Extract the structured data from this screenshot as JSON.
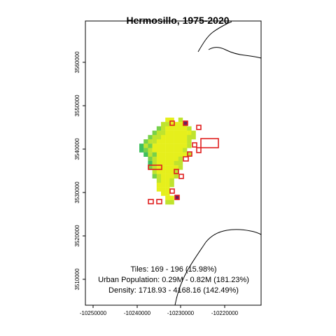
{
  "title": "Hermosillo, 1975-2020",
  "axes": {
    "x_ticks": [
      "-10250000",
      "-10240000",
      "-10230000",
      "-10220000"
    ],
    "y_ticks": [
      "3510000",
      "3520000",
      "3530000",
      "3540000",
      "3550000",
      "3560000"
    ]
  },
  "stats": {
    "tiles": "Tiles: 169 - 196 (15.98%)",
    "population": "Urban Population: 0.29M - 0.82M (181.23%)",
    "density": "Density: 1718.93 - 4168.16 (142.49%)"
  },
  "colors": {
    "core": "#e6ef1c",
    "mid": "#bfe32e",
    "edge": "#77d14a",
    "outer": "#3fbf5e",
    "new_tile_outline": "#e0201f",
    "new_tile_fill": "#6b1f5e",
    "coastline": "#000000"
  }
}
